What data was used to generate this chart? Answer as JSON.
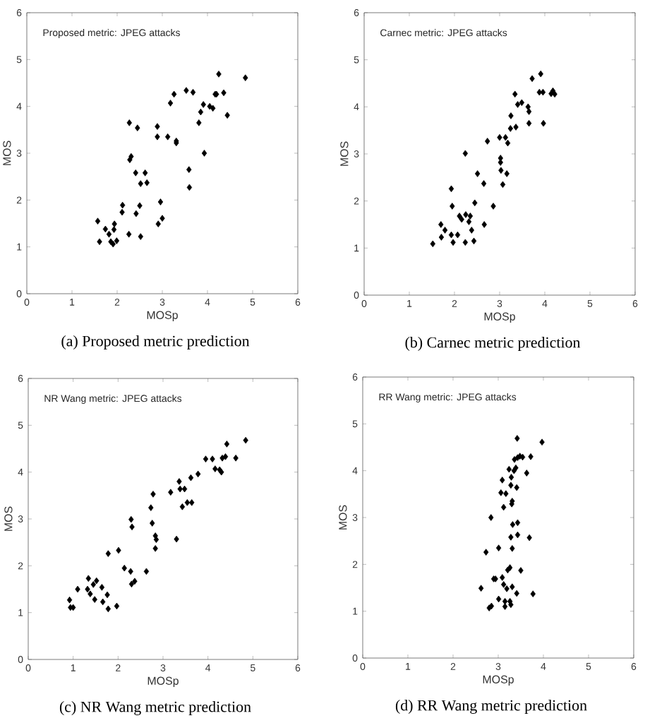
{
  "chart_data": [
    {
      "type": "scatter",
      "title": "Proposed metric: JPEG attacks",
      "xlabel": "MOSp",
      "ylabel": "MOS",
      "annotations": [
        "(a) Proposed metric prediction"
      ],
      "xlim": [
        0,
        6
      ],
      "ylim": [
        0,
        6
      ],
      "xticks": [
        0,
        1,
        2,
        3,
        4,
        5,
        6
      ],
      "yticks": [
        0,
        1,
        2,
        3,
        4,
        5,
        6
      ],
      "marker": "diamond",
      "color": "#000000",
      "x": [
        1.57,
        1.61,
        1.74,
        1.82,
        1.86,
        1.93,
        1.94,
        1.91,
        1.99,
        2.12,
        2.11,
        2.26,
        2.27,
        2.28,
        2.31,
        2.41,
        2.42,
        2.45,
        2.5,
        2.52,
        2.52,
        2.62,
        2.66,
        2.89,
        2.89,
        2.91,
        2.96,
        3.0,
        3.12,
        3.18,
        3.26,
        3.31,
        3.31,
        3.53,
        3.59,
        3.6,
        3.68,
        3.81,
        3.85,
        3.91,
        3.93,
        4.05,
        4.12,
        4.17,
        4.2,
        4.25,
        4.36,
        4.44,
        4.84
      ],
      "values": [
        1.55,
        1.11,
        1.38,
        1.27,
        1.11,
        1.37,
        1.49,
        1.06,
        1.13,
        1.89,
        1.74,
        1.27,
        3.65,
        2.86,
        2.93,
        2.58,
        1.71,
        3.54,
        1.88,
        1.22,
        2.35,
        2.58,
        2.37,
        3.57,
        3.35,
        1.49,
        1.96,
        1.61,
        3.35,
        4.07,
        4.26,
        3.26,
        3.22,
        4.34,
        2.65,
        2.27,
        4.3,
        3.65,
        3.88,
        4.04,
        3.0,
        4.0,
        3.96,
        4.26,
        4.26,
        4.69,
        4.29,
        3.81,
        4.61
      ]
    },
    {
      "type": "scatter",
      "title": "Carnec metric: JPEG attacks",
      "xlabel": "MOSp",
      "ylabel": "MOS",
      "annotations": [
        "(b) Carnec metric prediction"
      ],
      "xlim": [
        0,
        6
      ],
      "ylim": [
        0,
        6
      ],
      "xticks": [
        0,
        1,
        2,
        3,
        4,
        5,
        6
      ],
      "yticks": [
        0,
        1,
        2,
        3,
        4,
        5,
        6
      ],
      "marker": "diamond",
      "color": "#000000",
      "x": [
        1.52,
        1.7,
        1.71,
        1.79,
        1.93,
        1.95,
        1.93,
        1.97,
        2.07,
        2.11,
        2.16,
        2.24,
        2.24,
        2.25,
        2.32,
        2.35,
        2.38,
        2.43,
        2.45,
        2.51,
        2.65,
        2.66,
        2.73,
        2.86,
        3.0,
        3.02,
        3.02,
        3.03,
        3.07,
        3.13,
        3.16,
        3.18,
        3.24,
        3.25,
        3.34,
        3.36,
        3.4,
        3.49,
        3.63,
        3.65,
        3.65,
        3.72,
        3.88,
        3.91,
        3.96,
        3.97,
        4.14,
        4.18,
        4.22
      ],
      "values": [
        1.09,
        1.5,
        1.23,
        1.38,
        2.26,
        1.89,
        1.28,
        1.12,
        1.28,
        1.68,
        1.61,
        3.01,
        1.12,
        1.71,
        1.56,
        1.68,
        1.38,
        1.15,
        1.96,
        2.58,
        2.37,
        1.5,
        3.27,
        1.89,
        3.35,
        2.91,
        2.82,
        2.65,
        2.35,
        3.35,
        2.58,
        3.23,
        3.54,
        3.81,
        4.27,
        3.57,
        4.05,
        4.09,
        4.0,
        3.9,
        3.65,
        4.6,
        4.31,
        4.7,
        4.31,
        3.65,
        4.28,
        4.34,
        4.27
      ]
    },
    {
      "type": "scatter",
      "title": "NR Wang metric: JPEG attacks",
      "xlabel": "MOSp",
      "ylabel": "MOS",
      "annotations": [
        "(c) NR Wang metric prediction"
      ],
      "xlim": [
        0,
        6
      ],
      "ylim": [
        0,
        6
      ],
      "xticks": [
        0,
        1,
        2,
        3,
        4,
        5,
        6
      ],
      "yticks": [
        0,
        1,
        2,
        3,
        4,
        5,
        6
      ],
      "marker": "diamond",
      "color": "#000000",
      "x": [
        0.92,
        0.94,
        1.0,
        1.1,
        1.32,
        1.34,
        1.38,
        1.45,
        1.48,
        1.52,
        1.64,
        1.66,
        1.76,
        1.78,
        1.78,
        1.97,
        2.01,
        2.14,
        2.28,
        2.29,
        2.31,
        2.3,
        2.37,
        2.63,
        2.73,
        2.76,
        2.78,
        2.83,
        2.85,
        2.83,
        3.17,
        3.3,
        3.36,
        3.38,
        3.48,
        3.43,
        3.54,
        3.62,
        3.64,
        3.78,
        3.95,
        4.1,
        4.16,
        4.26,
        4.3,
        4.32,
        4.39,
        4.42,
        4.62,
        4.84
      ],
      "values": [
        1.27,
        1.11,
        1.11,
        1.5,
        1.5,
        1.73,
        1.4,
        1.6,
        1.28,
        1.68,
        1.54,
        1.23,
        1.38,
        2.26,
        1.08,
        1.14,
        2.33,
        1.95,
        1.88,
        2.99,
        2.83,
        1.61,
        1.67,
        1.88,
        3.24,
        2.91,
        3.53,
        2.64,
        2.56,
        2.37,
        3.57,
        2.57,
        3.8,
        3.64,
        3.64,
        3.26,
        3.35,
        3.88,
        3.35,
        3.96,
        4.28,
        4.28,
        4.07,
        4.05,
        4.0,
        4.3,
        4.33,
        4.6,
        4.3,
        4.68
      ]
    },
    {
      "type": "scatter",
      "title": "RR Wang metric: JPEG attacks",
      "xlabel": "MOSp",
      "ylabel": "MOS",
      "annotations": [
        "(d) RR Wang metric prediction"
      ],
      "xlim": [
        0,
        6
      ],
      "ylim": [
        0,
        6
      ],
      "xticks": [
        0,
        1,
        2,
        3,
        4,
        5,
        6
      ],
      "yticks": [
        0,
        1,
        2,
        3,
        4,
        5,
        6
      ],
      "marker": "diamond",
      "color": "#000000",
      "x": [
        2.62,
        2.73,
        2.8,
        2.85,
        2.84,
        2.9,
        2.94,
        3.01,
        3.01,
        3.06,
        3.09,
        3.09,
        3.12,
        3.15,
        3.15,
        3.17,
        3.12,
        3.19,
        3.21,
        3.24,
        3.26,
        3.26,
        3.28,
        3.28,
        3.28,
        3.29,
        3.3,
        3.31,
        3.31,
        3.31,
        3.32,
        3.35,
        3.36,
        3.39,
        3.42,
        3.41,
        3.41,
        3.43,
        3.43,
        3.43,
        3.48,
        3.5,
        3.54,
        3.63,
        3.69,
        3.72,
        3.77,
        3.97
      ],
      "values": [
        1.49,
        2.26,
        1.07,
        1.11,
        3.0,
        1.69,
        1.69,
        2.35,
        1.26,
        3.53,
        3.8,
        1.72,
        1.57,
        1.1,
        1.21,
        3.51,
        3.22,
        1.48,
        1.88,
        4.03,
        1.93,
        1.21,
        1.14,
        3.69,
        2.58,
        3.86,
        3.29,
        3.35,
        2.34,
        1.52,
        2.85,
        4.0,
        4.24,
        4.06,
        4.69,
        3.64,
        1.38,
        2.89,
        2.63,
        4.28,
        4.31,
        1.87,
        4.29,
        3.95,
        2.57,
        4.3,
        1.37,
        4.61
      ]
    }
  ]
}
